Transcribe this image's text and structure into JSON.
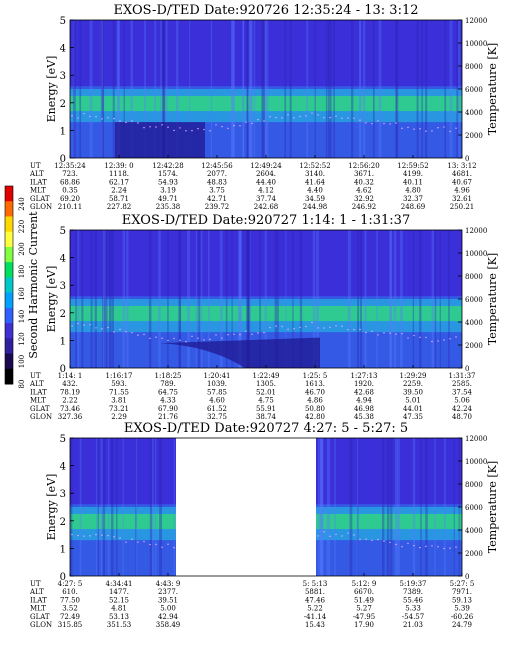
{
  "colorbar": {
    "label": "Second Harmonic Current",
    "ticks": [
      "240",
      "220",
      "200",
      "180",
      "160",
      "140",
      "120",
      "100",
      "80"
    ],
    "colors": [
      "#e00000",
      "#ff6a00",
      "#ffd800",
      "#ffff40",
      "#80ff40",
      "#00e060",
      "#00c8c8",
      "#00a0ff",
      "#3060ff",
      "#4030d0",
      "#3020a0",
      "#1a0a50",
      "#000000"
    ]
  },
  "chart_data": [
    {
      "type": "heatmap",
      "title": "EXOS-D/TED  Date:920726  12:35:24 - 13: 3:12",
      "ylabel": "Energy [eV]",
      "y2label": "Temperature [K]",
      "ylim": [
        0,
        5
      ],
      "y2lim": [
        0,
        12000
      ],
      "yticks": [
        "0",
        "1",
        "2",
        "3",
        "4",
        "5"
      ],
      "y2ticks": [
        "0",
        "2000",
        "4000",
        "6000",
        "8000",
        "10000",
        "12000"
      ],
      "table": [
        {
          "label": "UT",
          "values": [
            "12:35:24",
            "12:39: 0",
            "12:42:28",
            "12:45:56",
            "12:49:24",
            "12:52:52",
            "12:56:20",
            "12:59:52",
            "13: 3:12"
          ]
        },
        {
          "label": "ALT",
          "values": [
            "723.",
            "1118.",
            "1574.",
            "2077.",
            "2604.",
            "3140.",
            "3671.",
            "4199.",
            "4681."
          ]
        },
        {
          "label": "ILAT",
          "values": [
            "68.86",
            "62.17",
            "54.93",
            "48.83",
            "44.40",
            "41.64",
            "40.32",
            "40.11",
            "40.67"
          ]
        },
        {
          "label": "MLT",
          "values": [
            "0.35",
            "2.24",
            "3.19",
            "3.75",
            "4.12",
            "4.40",
            "4.62",
            "4.80",
            "4.96"
          ]
        },
        {
          "label": "GLAT",
          "values": [
            "69.20",
            "58.71",
            "49.71",
            "42.71",
            "37.74",
            "34.59",
            "32.92",
            "32.37",
            "32.61"
          ]
        },
        {
          "label": "GLON",
          "values": [
            "210.11",
            "227.82",
            "235.38",
            "239.72",
            "242.68",
            "244.98",
            "246.92",
            "248.69",
            "250.21"
          ]
        }
      ]
    },
    {
      "type": "heatmap",
      "title": "EXOS-D/TED  Date:920727  1:14: 1 - 1:31:37",
      "ylabel": "Energy [eV]",
      "y2label": "Temperature [K]",
      "ylim": [
        0,
        5
      ],
      "y2lim": [
        0,
        12000
      ],
      "yticks": [
        "0",
        "1",
        "2",
        "3",
        "4",
        "5"
      ],
      "y2ticks": [
        "0",
        "2000",
        "4000",
        "6000",
        "8000",
        "10000",
        "12000"
      ],
      "table": [
        {
          "label": "UT",
          "values": [
            "1:14: 1",
            "1:16:17",
            "1:18:25",
            "1:20:41",
            "1:22:49",
            "1:25: 5",
            "1:27:13",
            "1:29:29",
            "1:31:37"
          ]
        },
        {
          "label": "ALT",
          "values": [
            "432.",
            "593.",
            "789.",
            "1039.",
            "1305.",
            "1613.",
            "1920.",
            "2259.",
            "2585."
          ]
        },
        {
          "label": "ILAT",
          "values": [
            "78.19",
            "71.55",
            "64.75",
            "57.85",
            "52.01",
            "46.70",
            "42.68",
            "39.50",
            "37.54"
          ]
        },
        {
          "label": "MLT",
          "values": [
            "2.22",
            "3.81",
            "4.33",
            "4.60",
            "4.75",
            "4.86",
            "4.94",
            "5.01",
            "5.06"
          ]
        },
        {
          "label": "GLAT",
          "values": [
            "73.46",
            "73.21",
            "67.90",
            "61.52",
            "55.91",
            "50.80",
            "46.98",
            "44.01",
            "42.24"
          ]
        },
        {
          "label": "GLON",
          "values": [
            "327.36",
            "2.29",
            "21.76",
            "32.75",
            "38.74",
            "42.80",
            "45.38",
            "47.35",
            "48.70"
          ]
        }
      ]
    },
    {
      "type": "heatmap",
      "title": "EXOS-D/TED  Date:920727  4:27: 5 - 5:27: 5",
      "ylabel": "Energy [eV]",
      "y2label": "Temperature [K]",
      "ylim": [
        0,
        5
      ],
      "y2lim": [
        0,
        12000
      ],
      "yticks": [
        "0",
        "1",
        "2",
        "3",
        "4",
        "5"
      ],
      "y2ticks": [
        "0",
        "2000",
        "4000",
        "6000",
        "8000",
        "10000",
        "12000"
      ],
      "table": [
        {
          "label": "UT",
          "values": [
            "4:27: 5",
            "4:34:41",
            "4:43: 9",
            "",
            "",
            "5: 5:13",
            "5:12: 9",
            "5:19:37",
            "5:27: 5"
          ]
        },
        {
          "label": "ALT",
          "values": [
            "610.",
            "1477.",
            "2377.",
            "",
            "",
            "5881.",
            "6670.",
            "7389.",
            "7971."
          ]
        },
        {
          "label": "ILAT",
          "values": [
            "77.50",
            "52.15",
            "39.51",
            "",
            "",
            "47.46",
            "51.49",
            "55.46",
            "59.13"
          ]
        },
        {
          "label": "MLT",
          "values": [
            "3.52",
            "4.81",
            "5.00",
            "",
            "",
            "5.22",
            "5.27",
            "5.33",
            "5.39"
          ]
        },
        {
          "label": "GLAT",
          "values": [
            "72.49",
            "53.13",
            "42.94",
            "",
            "",
            "-41.14",
            "-47.95",
            "-54.57",
            "-60.26"
          ]
        },
        {
          "label": "GLON",
          "values": [
            "315.85",
            "351.53",
            "358.49",
            "",
            "",
            "15.43",
            "17.90",
            "21.03",
            "24.79"
          ]
        }
      ]
    }
  ]
}
